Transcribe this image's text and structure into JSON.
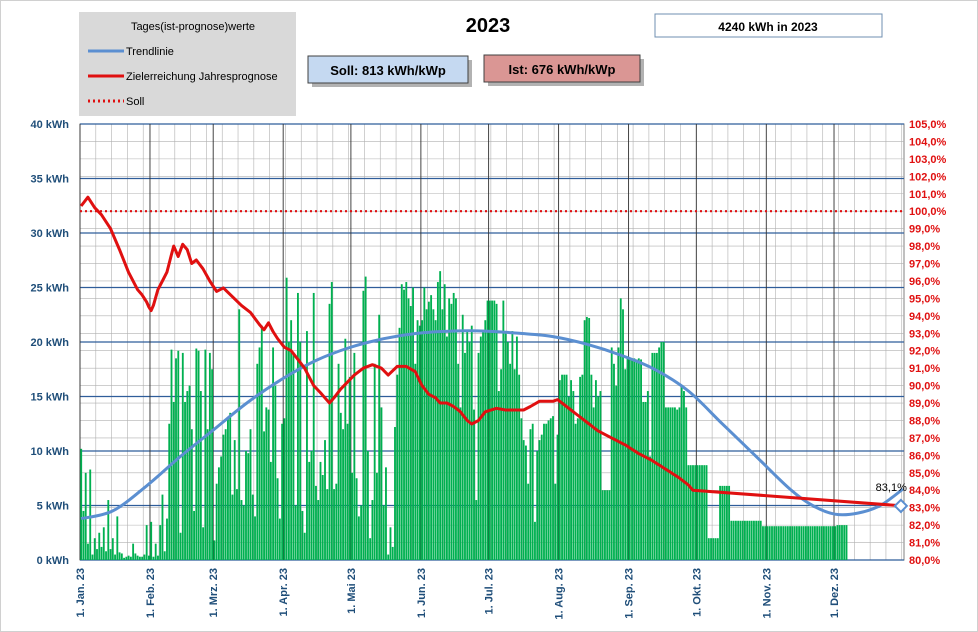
{
  "chart_data": {
    "type": "bar",
    "title": "2023",
    "info_box": "4240 kWh in 2023",
    "soll_box": "Soll: 813 kWh/kWp",
    "ist_box": "Ist: 676 kWh/kWp",
    "legend": {
      "title": "Tages(ist-prognose)werte",
      "placement": "top-left",
      "entries": [
        {
          "label": "Trendlinie",
          "color": "#5b8fd1",
          "style": "solid"
        },
        {
          "label": "Zielerreichung Jahresprognose",
          "color": "#e01010",
          "style": "solid"
        },
        {
          "label": "Soll",
          "color": "#e01010",
          "style": "dotted"
        }
      ]
    },
    "y_left": {
      "min": 0,
      "max": 40,
      "ticks": [
        "0 kWh",
        "5 kWh",
        "10 kWh",
        "15 kWh",
        "20 kWh",
        "25 kWh",
        "30 kWh",
        "35 kWh",
        "40 kWh"
      ]
    },
    "y_right": {
      "min": 80,
      "max": 105,
      "ticks": [
        "80,0%",
        "81,0%",
        "82,0%",
        "83,0%",
        "84,0%",
        "85,0%",
        "86,0%",
        "87,0%",
        "88,0%",
        "89,0%",
        "90,0%",
        "91,0%",
        "92,0%",
        "93,0%",
        "94,0%",
        "95,0%",
        "96,0%",
        "97,0%",
        "98,0%",
        "99,0%",
        "100,0%",
        "101,0%",
        "102,0%",
        "103,0%",
        "104,0%",
        "105,0%"
      ]
    },
    "x_ticks": [
      {
        "label": "1. Jan. 23",
        "day": 1
      },
      {
        "label": "1. Feb. 23",
        "day": 32
      },
      {
        "label": "1. Mrz. 23",
        "day": 60
      },
      {
        "label": "1. Apr. 23",
        "day": 91
      },
      {
        "label": "1. Mai 23",
        "day": 121
      },
      {
        "label": "1. Jun. 23",
        "day": 152
      },
      {
        "label": "1. Jul. 23",
        "day": 182
      },
      {
        "label": "1. Aug. 23",
        "day": 213
      },
      {
        "label": "1. Sep. 23",
        "day": 244
      },
      {
        "label": "1. Okt. 23",
        "day": 274
      },
      {
        "label": "1. Nov. 23",
        "day": 305
      },
      {
        "label": "1. Dez. 23",
        "day": 335
      }
    ],
    "days_in_year": 365,
    "bar_color": "#00b050",
    "daily_values_kwh": [
      10.2,
      4.5,
      8,
      1.5,
      8.3,
      0.5,
      2,
      1,
      2.5,
      1.2,
      3,
      0.8,
      5.5,
      1,
      2,
      0.5,
      4,
      0.7,
      0.6,
      0.2,
      0.3,
      0.4,
      0.3,
      1.5,
      0.6,
      0.4,
      0.3,
      0.3,
      0.5,
      3.2,
      0.4,
      3.5,
      0.3,
      1.5,
      0.4,
      3.2,
      6,
      0.8,
      3.8,
      12.5,
      19.3,
      14.5,
      18.5,
      19.2,
      2.5,
      19,
      14.5,
      15.5,
      16,
      12,
      4.5,
      19.4,
      19.2,
      15.5,
      3,
      19.3,
      12,
      19,
      17.5,
      1.8,
      7,
      8.5,
      9.5,
      11.5,
      12,
      13,
      13.5,
      6,
      11,
      6.5,
      23,
      5.5,
      5,
      10,
      9.8,
      12,
      6,
      4,
      18,
      19.5,
      21.5,
      11.8,
      14,
      13.8,
      9,
      19.5,
      16,
      7.5,
      3.8,
      12.5,
      13,
      25.9,
      20,
      22,
      19,
      5,
      24.5,
      20,
      4.5,
      2.5,
      21,
      9,
      10,
      24.5,
      6.8,
      5.5,
      9,
      7.8,
      11,
      6.5,
      23.5,
      25.5,
      6.5,
      7,
      18,
      13.5,
      12,
      20.3,
      12.5,
      16.8,
      8,
      19,
      7.5,
      4,
      5,
      24.7,
      26,
      10,
      2,
      5.5,
      18,
      8,
      22.5,
      14,
      5,
      8.5,
      0.5,
      3,
      1.2,
      12.2,
      17,
      21.3,
      25.3,
      24.8,
      25.5,
      24,
      23.3,
      25,
      18,
      22,
      21.5,
      22,
      25,
      23,
      23.7,
      24.3,
      23,
      22,
      25.5,
      26.5,
      23,
      25.3,
      20.5,
      24,
      23.5,
      24.5,
      24,
      18,
      14,
      22.5,
      19,
      21,
      20,
      21.5,
      13.8,
      5.5,
      19,
      20.5,
      21,
      22,
      23.8,
      23.8,
      23.8,
      23.8,
      23.5,
      15.5,
      17.5,
      23.8,
      21,
      20,
      18,
      21,
      17.5,
      20.5,
      17,
      13,
      11,
      10.5,
      7,
      12,
      12.5,
      3.5,
      10,
      11,
      11.5,
      12.5,
      12.5,
      12.8,
      13,
      13.2,
      7,
      11.5,
      16.5,
      17,
      17,
      17,
      15,
      16.5,
      15.5,
      12.5,
      13,
      16.8,
      17,
      22,
      22.3,
      22.2,
      17,
      14,
      16.5,
      15,
      15.5,
      6.4,
      6.4,
      6.4,
      6.4,
      19.5,
      18,
      16,
      19.5,
      24,
      23,
      17.5,
      18.5,
      18.5,
      18.5,
      18.5,
      18.4,
      18.5,
      18.4,
      14.5,
      14.5,
      15.5,
      9.5,
      19,
      19,
      19,
      19.5,
      20,
      20,
      14,
      14,
      14,
      14,
      14,
      13.8,
      14,
      16,
      15.5,
      14,
      8.7,
      8.7,
      8.7,
      8.7,
      8.7,
      8.7,
      8.7,
      8.7,
      8.7,
      2,
      2,
      2,
      2,
      2,
      6.8,
      6.8,
      6.8,
      6.8,
      6.8,
      3.6,
      3.6,
      3.6,
      3.6,
      3.6,
      3.6,
      3.6,
      3.6,
      3.6,
      3.6,
      3.6,
      3.6,
      3.6,
      3.6,
      3.1,
      3.1,
      3.1,
      3.1,
      3.1,
      3.1,
      3.1,
      3.1,
      3.1,
      3.1,
      3.1,
      3.1,
      3.1,
      3.1,
      3.1,
      3.1,
      3.1,
      3.1,
      3.1,
      3.1,
      3.1,
      3.1,
      3.1,
      3.1,
      3.1,
      3.1,
      3.1,
      3.1,
      3.1,
      3.1,
      3.1,
      3.1,
      3.1,
      3.2,
      3.2,
      3.2,
      3.2,
      3.2
    ],
    "trend_kwh": [
      [
        1,
        3.8
      ],
      [
        15,
        4.5
      ],
      [
        30,
        6.8
      ],
      [
        45,
        9.5
      ],
      [
        60,
        12
      ],
      [
        75,
        14.5
      ],
      [
        90,
        16.6
      ],
      [
        105,
        18.3
      ],
      [
        120,
        19.5
      ],
      [
        135,
        20.3
      ],
      [
        150,
        20.8
      ],
      [
        165,
        21
      ],
      [
        180,
        21
      ],
      [
        195,
        20.8
      ],
      [
        210,
        20.5
      ],
      [
        225,
        19.8
      ],
      [
        240,
        18.8
      ],
      [
        255,
        17.5
      ],
      [
        270,
        15.5
      ],
      [
        285,
        12.5
      ],
      [
        300,
        9.5
      ],
      [
        315,
        6.5
      ],
      [
        325,
        5
      ],
      [
        335,
        4.2
      ],
      [
        345,
        4.3
      ],
      [
        355,
        5
      ],
      [
        365,
        6.5
      ]
    ],
    "zielerreichung_percent": [
      [
        1,
        100.3
      ],
      [
        4,
        100.8
      ],
      [
        7,
        100.2
      ],
      [
        10,
        99.8
      ],
      [
        14,
        99
      ],
      [
        18,
        97.8
      ],
      [
        22,
        96.5
      ],
      [
        26,
        95.5
      ],
      [
        28,
        95.2
      ],
      [
        30,
        94.8
      ],
      [
        31,
        94.5
      ],
      [
        32,
        94.3
      ],
      [
        33,
        94.6
      ],
      [
        35,
        95.5
      ],
      [
        37,
        96
      ],
      [
        39,
        96.5
      ],
      [
        41,
        97.5
      ],
      [
        42,
        98
      ],
      [
        44,
        97.4
      ],
      [
        46,
        98.1
      ],
      [
        48,
        97.8
      ],
      [
        50,
        97
      ],
      [
        52,
        97.2
      ],
      [
        55,
        96.7
      ],
      [
        58,
        96
      ],
      [
        61,
        95.4
      ],
      [
        64,
        95.6
      ],
      [
        68,
        95.1
      ],
      [
        72,
        94.6
      ],
      [
        76,
        94.2
      ],
      [
        80,
        93.5
      ],
      [
        82,
        93.2
      ],
      [
        84,
        93.6
      ],
      [
        86,
        93.1
      ],
      [
        88,
        92.7
      ],
      [
        91,
        92.2
      ],
      [
        94,
        92
      ],
      [
        97,
        91.5
      ],
      [
        100,
        91
      ],
      [
        104,
        90
      ],
      [
        107,
        89.6
      ],
      [
        109,
        89.3
      ],
      [
        111,
        89
      ],
      [
        113,
        89.3
      ],
      [
        116,
        89.8
      ],
      [
        119,
        90.2
      ],
      [
        122,
        90.6
      ],
      [
        126,
        91
      ],
      [
        130,
        91.2
      ],
      [
        134,
        91
      ],
      [
        137,
        90.6
      ],
      [
        141,
        91.1
      ],
      [
        145,
        91.1
      ],
      [
        149,
        90.8
      ],
      [
        152,
        90
      ],
      [
        155,
        89.5
      ],
      [
        158,
        89.3
      ],
      [
        160,
        89
      ],
      [
        163,
        89
      ],
      [
        166,
        88.8
      ],
      [
        169,
        88.5
      ],
      [
        172,
        88
      ],
      [
        174,
        87.8
      ],
      [
        177,
        88
      ],
      [
        180,
        88.5
      ],
      [
        185,
        88.7
      ],
      [
        189,
        88.6
      ],
      [
        193,
        88.6
      ],
      [
        197,
        88.6
      ],
      [
        200,
        88.8
      ],
      [
        204,
        89.1
      ],
      [
        207,
        89.1
      ],
      [
        210,
        89.1
      ],
      [
        212,
        89.2
      ],
      [
        216,
        88.8
      ],
      [
        220,
        88.4
      ],
      [
        225,
        87.9
      ],
      [
        230,
        87.4
      ],
      [
        236,
        87
      ],
      [
        242,
        86.6
      ],
      [
        248,
        86.1
      ],
      [
        254,
        85.7
      ],
      [
        260,
        85.2
      ],
      [
        266,
        84.7
      ],
      [
        270,
        84.3
      ],
      [
        272,
        84
      ]
    ],
    "soll_percent": 100,
    "end_marker": {
      "day": 365,
      "percent": 83.1,
      "label": "83,1%"
    }
  }
}
